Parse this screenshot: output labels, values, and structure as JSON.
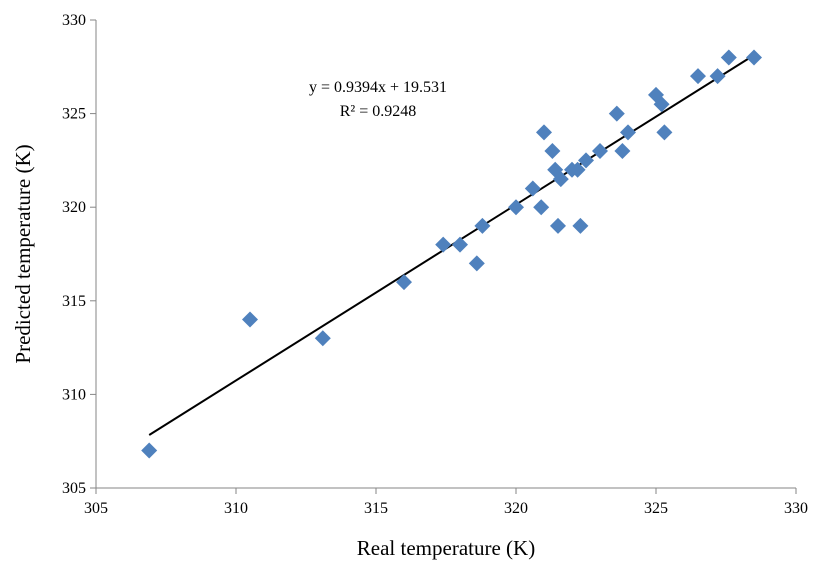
{
  "chart_data": {
    "type": "scatter",
    "title": "",
    "xlabel": "Real temperature (K)",
    "ylabel": "Predicted temperature (K)",
    "xlim": [
      305,
      330
    ],
    "ylim": [
      305,
      330
    ],
    "xticks": [
      305,
      310,
      315,
      320,
      325,
      330
    ],
    "yticks": [
      305,
      310,
      315,
      320,
      325,
      330
    ],
    "grid": false,
    "legend": "none",
    "marker_color": "#4F81BD",
    "points": [
      {
        "x": 306.9,
        "y": 307
      },
      {
        "x": 310.5,
        "y": 314
      },
      {
        "x": 313.1,
        "y": 313
      },
      {
        "x": 316.0,
        "y": 316
      },
      {
        "x": 317.4,
        "y": 318
      },
      {
        "x": 318.0,
        "y": 318
      },
      {
        "x": 318.6,
        "y": 317
      },
      {
        "x": 318.8,
        "y": 319
      },
      {
        "x": 320.0,
        "y": 320
      },
      {
        "x": 320.6,
        "y": 321
      },
      {
        "x": 320.9,
        "y": 320
      },
      {
        "x": 321.0,
        "y": 324
      },
      {
        "x": 321.3,
        "y": 323
      },
      {
        "x": 321.4,
        "y": 322
      },
      {
        "x": 321.5,
        "y": 319
      },
      {
        "x": 321.6,
        "y": 321.5
      },
      {
        "x": 322.0,
        "y": 322
      },
      {
        "x": 322.2,
        "y": 322
      },
      {
        "x": 322.3,
        "y": 319
      },
      {
        "x": 322.5,
        "y": 322.5
      },
      {
        "x": 323.0,
        "y": 323
      },
      {
        "x": 323.6,
        "y": 325
      },
      {
        "x": 323.8,
        "y": 323
      },
      {
        "x": 324.0,
        "y": 324
      },
      {
        "x": 325.0,
        "y": 326
      },
      {
        "x": 325.2,
        "y": 325.5
      },
      {
        "x": 325.3,
        "y": 324
      },
      {
        "x": 326.5,
        "y": 327
      },
      {
        "x": 327.2,
        "y": 327
      },
      {
        "x": 327.6,
        "y": 328
      },
      {
        "x": 328.5,
        "y": 328
      }
    ],
    "trendline": {
      "slope": 0.9394,
      "intercept": 19.531,
      "x_range": [
        306.9,
        328.5
      ],
      "color": "#000000",
      "equation": "y = 0.9394x + 19.531",
      "r_squared": "R² = 0.9248"
    }
  }
}
